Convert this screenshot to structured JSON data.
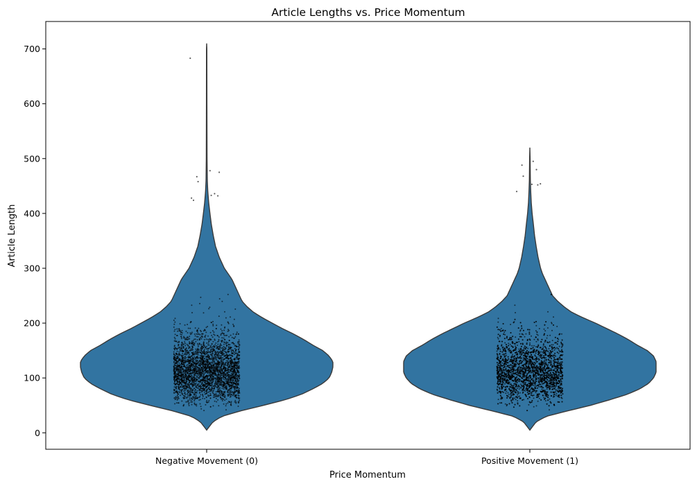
{
  "chart_data": {
    "type": "violin",
    "title": "Article Lengths vs. Price Momentum",
    "xlabel": "Price Momentum",
    "ylabel": "Article Length",
    "categories": [
      "Negative Movement (0)",
      "Positive Movement (1)"
    ],
    "ylim": [
      -30,
      750
    ],
    "yticks": [
      0,
      100,
      200,
      300,
      400,
      500,
      600,
      700
    ],
    "grid": false,
    "violin_color": "#3274a1",
    "outline_color": "#3a3a3a",
    "point_color": "#000000",
    "series": [
      {
        "category": "Negative Movement (0)",
        "min": 5,
        "max": 710,
        "density": [
          [
            5,
            0
          ],
          [
            20,
            0.05
          ],
          [
            30,
            0.12
          ],
          [
            40,
            0.27
          ],
          [
            50,
            0.45
          ],
          [
            60,
            0.62
          ],
          [
            70,
            0.75
          ],
          [
            80,
            0.84
          ],
          [
            90,
            0.92
          ],
          [
            100,
            0.97
          ],
          [
            110,
            0.99
          ],
          [
            120,
            1.0
          ],
          [
            130,
            1.0
          ],
          [
            140,
            0.97
          ],
          [
            150,
            0.92
          ],
          [
            160,
            0.84
          ],
          [
            170,
            0.77
          ],
          [
            180,
            0.69
          ],
          [
            190,
            0.6
          ],
          [
            200,
            0.52
          ],
          [
            210,
            0.44
          ],
          [
            220,
            0.37
          ],
          [
            230,
            0.32
          ],
          [
            240,
            0.28
          ],
          [
            250,
            0.26
          ],
          [
            260,
            0.24
          ],
          [
            270,
            0.22
          ],
          [
            280,
            0.2
          ],
          [
            290,
            0.17
          ],
          [
            300,
            0.14
          ],
          [
            320,
            0.1
          ],
          [
            340,
            0.07
          ],
          [
            360,
            0.052
          ],
          [
            380,
            0.037
          ],
          [
            400,
            0.026
          ],
          [
            420,
            0.016
          ],
          [
            440,
            0.009
          ],
          [
            460,
            0.005
          ],
          [
            500,
            0.003
          ],
          [
            600,
            0.002
          ],
          [
            700,
            0.0015
          ],
          [
            710,
            0
          ]
        ],
        "outliers": [
          [
            -0.25,
            683
          ],
          [
            -0.15,
            467
          ],
          [
            -0.13,
            458
          ],
          [
            0.05,
            478
          ],
          [
            0.19,
            475
          ],
          [
            -0.23,
            428
          ],
          [
            -0.2,
            424
          ],
          [
            0.12,
            436
          ],
          [
            0.07,
            433
          ],
          [
            0.17,
            432
          ]
        ]
      },
      {
        "category": "Positive Movement (1)",
        "min": 5,
        "max": 520,
        "density": [
          [
            5,
            0
          ],
          [
            20,
            0.05
          ],
          [
            30,
            0.13
          ],
          [
            40,
            0.3
          ],
          [
            50,
            0.48
          ],
          [
            60,
            0.63
          ],
          [
            70,
            0.77
          ],
          [
            80,
            0.87
          ],
          [
            90,
            0.94
          ],
          [
            100,
            0.98
          ],
          [
            110,
            1.0
          ],
          [
            120,
            1.0
          ],
          [
            130,
            1.0
          ],
          [
            140,
            0.98
          ],
          [
            150,
            0.93
          ],
          [
            160,
            0.85
          ],
          [
            170,
            0.78
          ],
          [
            180,
            0.7
          ],
          [
            190,
            0.61
          ],
          [
            200,
            0.52
          ],
          [
            210,
            0.42
          ],
          [
            220,
            0.33
          ],
          [
            230,
            0.27
          ],
          [
            240,
            0.22
          ],
          [
            250,
            0.18
          ],
          [
            260,
            0.16
          ],
          [
            270,
            0.14
          ],
          [
            280,
            0.12
          ],
          [
            290,
            0.1
          ],
          [
            300,
            0.085
          ],
          [
            320,
            0.065
          ],
          [
            340,
            0.05
          ],
          [
            360,
            0.037
          ],
          [
            380,
            0.028
          ],
          [
            400,
            0.018
          ],
          [
            420,
            0.011
          ],
          [
            440,
            0.007
          ],
          [
            460,
            0.004
          ],
          [
            500,
            0.002
          ],
          [
            520,
            0
          ]
        ],
        "outliers": [
          [
            -0.12,
            488
          ],
          [
            0.05,
            495
          ],
          [
            0.1,
            480
          ],
          [
            0.16,
            454
          ],
          [
            -0.2,
            440
          ],
          [
            -0.1,
            468
          ],
          [
            0.03,
            453
          ],
          [
            0.12,
            452
          ]
        ]
      }
    ]
  }
}
